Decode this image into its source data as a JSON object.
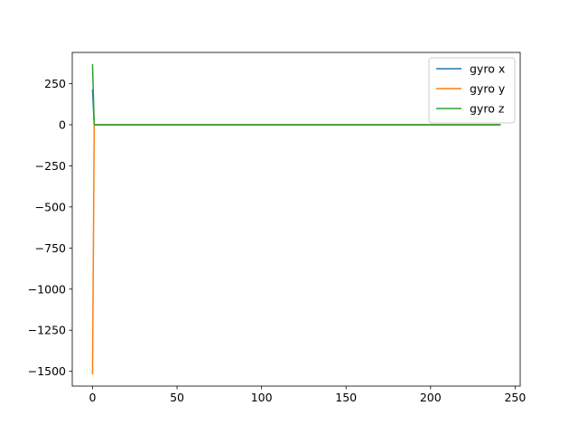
{
  "chart_data": {
    "type": "line",
    "title": "",
    "xlabel": "",
    "ylabel": "",
    "xlim": [
      -12,
      253
    ],
    "ylim": [
      -1590,
      440
    ],
    "xticks": [
      0,
      50,
      100,
      150,
      200,
      250
    ],
    "xtick_labels": [
      "0",
      "50",
      "100",
      "150",
      "200",
      "250"
    ],
    "yticks": [
      250,
      0,
      -250,
      -500,
      -750,
      -1000,
      -1250,
      -1500
    ],
    "ytick_labels": [
      "250",
      "0",
      "−250",
      "−500",
      "−750",
      "−1000",
      "−1250",
      "−1500"
    ],
    "grid": false,
    "legend": "top-right",
    "series": [
      {
        "name": "gyro x",
        "color": "#1f77b4",
        "x": [
          0,
          1,
          2,
          241
        ],
        "y": [
          210,
          0,
          0,
          0
        ]
      },
      {
        "name": "gyro y",
        "color": "#ff7f0e",
        "x": [
          0,
          1,
          2,
          241
        ],
        "y": [
          -1515,
          0,
          0,
          0
        ]
      },
      {
        "name": "gyro z",
        "color": "#2ca02c",
        "x": [
          0,
          1,
          2,
          241
        ],
        "y": [
          365,
          0,
          0,
          0
        ]
      }
    ]
  }
}
